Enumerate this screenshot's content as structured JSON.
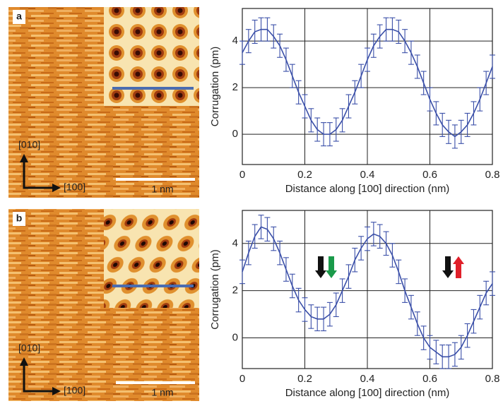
{
  "chart_data": [
    {
      "type": "line",
      "panel": "a",
      "image_labels": {
        "y_direction": "[010]",
        "x_direction": "[100]",
        "scale_bar": "1 nm"
      },
      "xlabel": "Distance along [100] direction (nm)",
      "ylabel": "Corrugation (pm)",
      "x": [
        0,
        0.02,
        0.04,
        0.06,
        0.08,
        0.1,
        0.12,
        0.14,
        0.16,
        0.18,
        0.2,
        0.22,
        0.24,
        0.26,
        0.28,
        0.3,
        0.32,
        0.34,
        0.36,
        0.38,
        0.4,
        0.42,
        0.44,
        0.46,
        0.48,
        0.5,
        0.52,
        0.54,
        0.56,
        0.58,
        0.6,
        0.62,
        0.64,
        0.66,
        0.68,
        0.7,
        0.72,
        0.74,
        0.76,
        0.78,
        0.8
      ],
      "series": [
        {
          "color": "#3a4fa8",
          "error": 0.5,
          "values": [
            3.5,
            4.0,
            4.4,
            4.5,
            4.5,
            4.2,
            3.8,
            3.2,
            2.5,
            1.8,
            1.2,
            0.6,
            0.2,
            0,
            0,
            0.2,
            0.6,
            1.2,
            1.8,
            2.5,
            3.2,
            3.8,
            4.2,
            4.5,
            4.5,
            4.4,
            4.0,
            3.5,
            2.9,
            2.2,
            1.5,
            0.9,
            0.4,
            0.1,
            -0.1,
            0.1,
            0.4,
            0.9,
            1.5,
            2.2,
            2.9
          ]
        }
      ],
      "xlim": [
        0,
        0.8
      ],
      "xticks": [
        0,
        0.2,
        0.4,
        0.6,
        0.8
      ],
      "ylim": [
        -1.3,
        5.4
      ],
      "yticks": [
        0,
        2,
        4
      ],
      "grid": true
    },
    {
      "type": "line",
      "panel": "b",
      "image_labels": {
        "y_direction": "[010]",
        "x_direction": "[100]",
        "scale_bar": "1 nm"
      },
      "xlabel": "Distance along [100] direction (nm)",
      "ylabel": "Corrugation (pm)",
      "x": [
        0,
        0.02,
        0.04,
        0.06,
        0.08,
        0.1,
        0.12,
        0.14,
        0.16,
        0.18,
        0.2,
        0.22,
        0.24,
        0.26,
        0.28,
        0.3,
        0.32,
        0.34,
        0.36,
        0.38,
        0.4,
        0.42,
        0.44,
        0.46,
        0.48,
        0.5,
        0.52,
        0.54,
        0.56,
        0.58,
        0.6,
        0.62,
        0.64,
        0.66,
        0.68,
        0.7,
        0.72,
        0.74,
        0.76,
        0.78,
        0.8
      ],
      "series": [
        {
          "color": "#3a4fa8",
          "error": 0.5,
          "values": [
            2.8,
            3.6,
            4.3,
            4.7,
            4.6,
            4.2,
            3.6,
            2.9,
            2.2,
            1.6,
            1.2,
            0.9,
            0.8,
            0.8,
            1.0,
            1.4,
            2.0,
            2.6,
            3.3,
            3.8,
            4.2,
            4.4,
            4.3,
            4.0,
            3.5,
            2.8,
            2.0,
            1.3,
            0.6,
            0.0,
            -0.4,
            -0.6,
            -0.8,
            -0.8,
            -0.7,
            -0.4,
            0.1,
            0.7,
            1.3,
            1.9,
            2.3
          ]
        }
      ],
      "xlim": [
        0,
        0.8
      ],
      "xticks": [
        0,
        0.2,
        0.4,
        0.6,
        0.8
      ],
      "ylim": [
        -1.3,
        5.4
      ],
      "yticks": [
        0,
        2,
        4
      ],
      "grid": true
    }
  ]
}
